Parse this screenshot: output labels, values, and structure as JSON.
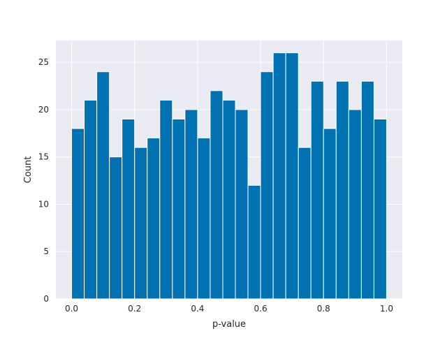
{
  "chart_data": {
    "type": "bar",
    "bin_width": 0.04,
    "bins": [
      0.0,
      0.04,
      0.08,
      0.12,
      0.16,
      0.2,
      0.24,
      0.28,
      0.32,
      0.36,
      0.4,
      0.44,
      0.48,
      0.52,
      0.56,
      0.6,
      0.64,
      0.68,
      0.72,
      0.76,
      0.8,
      0.84,
      0.88,
      0.92,
      0.96
    ],
    "values": [
      18,
      21,
      24,
      15,
      19,
      16,
      17,
      21,
      19,
      20,
      17,
      22,
      21,
      20,
      12,
      24,
      26,
      26,
      16,
      23,
      18,
      23,
      20,
      23,
      19
    ],
    "xlabel": "p-value",
    "ylabel": "Count",
    "xlim": [
      -0.05,
      1.05
    ],
    "ylim": [
      0,
      27.3
    ],
    "xticks": [
      0.0,
      0.2,
      0.4,
      0.6,
      0.8,
      1.0
    ],
    "xtick_labels": [
      "0.0",
      "0.2",
      "0.4",
      "0.6",
      "0.8",
      "1.0"
    ],
    "yticks": [
      0,
      5,
      10,
      15,
      20,
      25
    ],
    "ytick_labels": [
      "0",
      "5",
      "10",
      "15",
      "20",
      "25"
    ],
    "bar_color": "#0072b2",
    "background_color": "#eaeaf2",
    "grid": true,
    "grid_color": "#ffffff"
  }
}
